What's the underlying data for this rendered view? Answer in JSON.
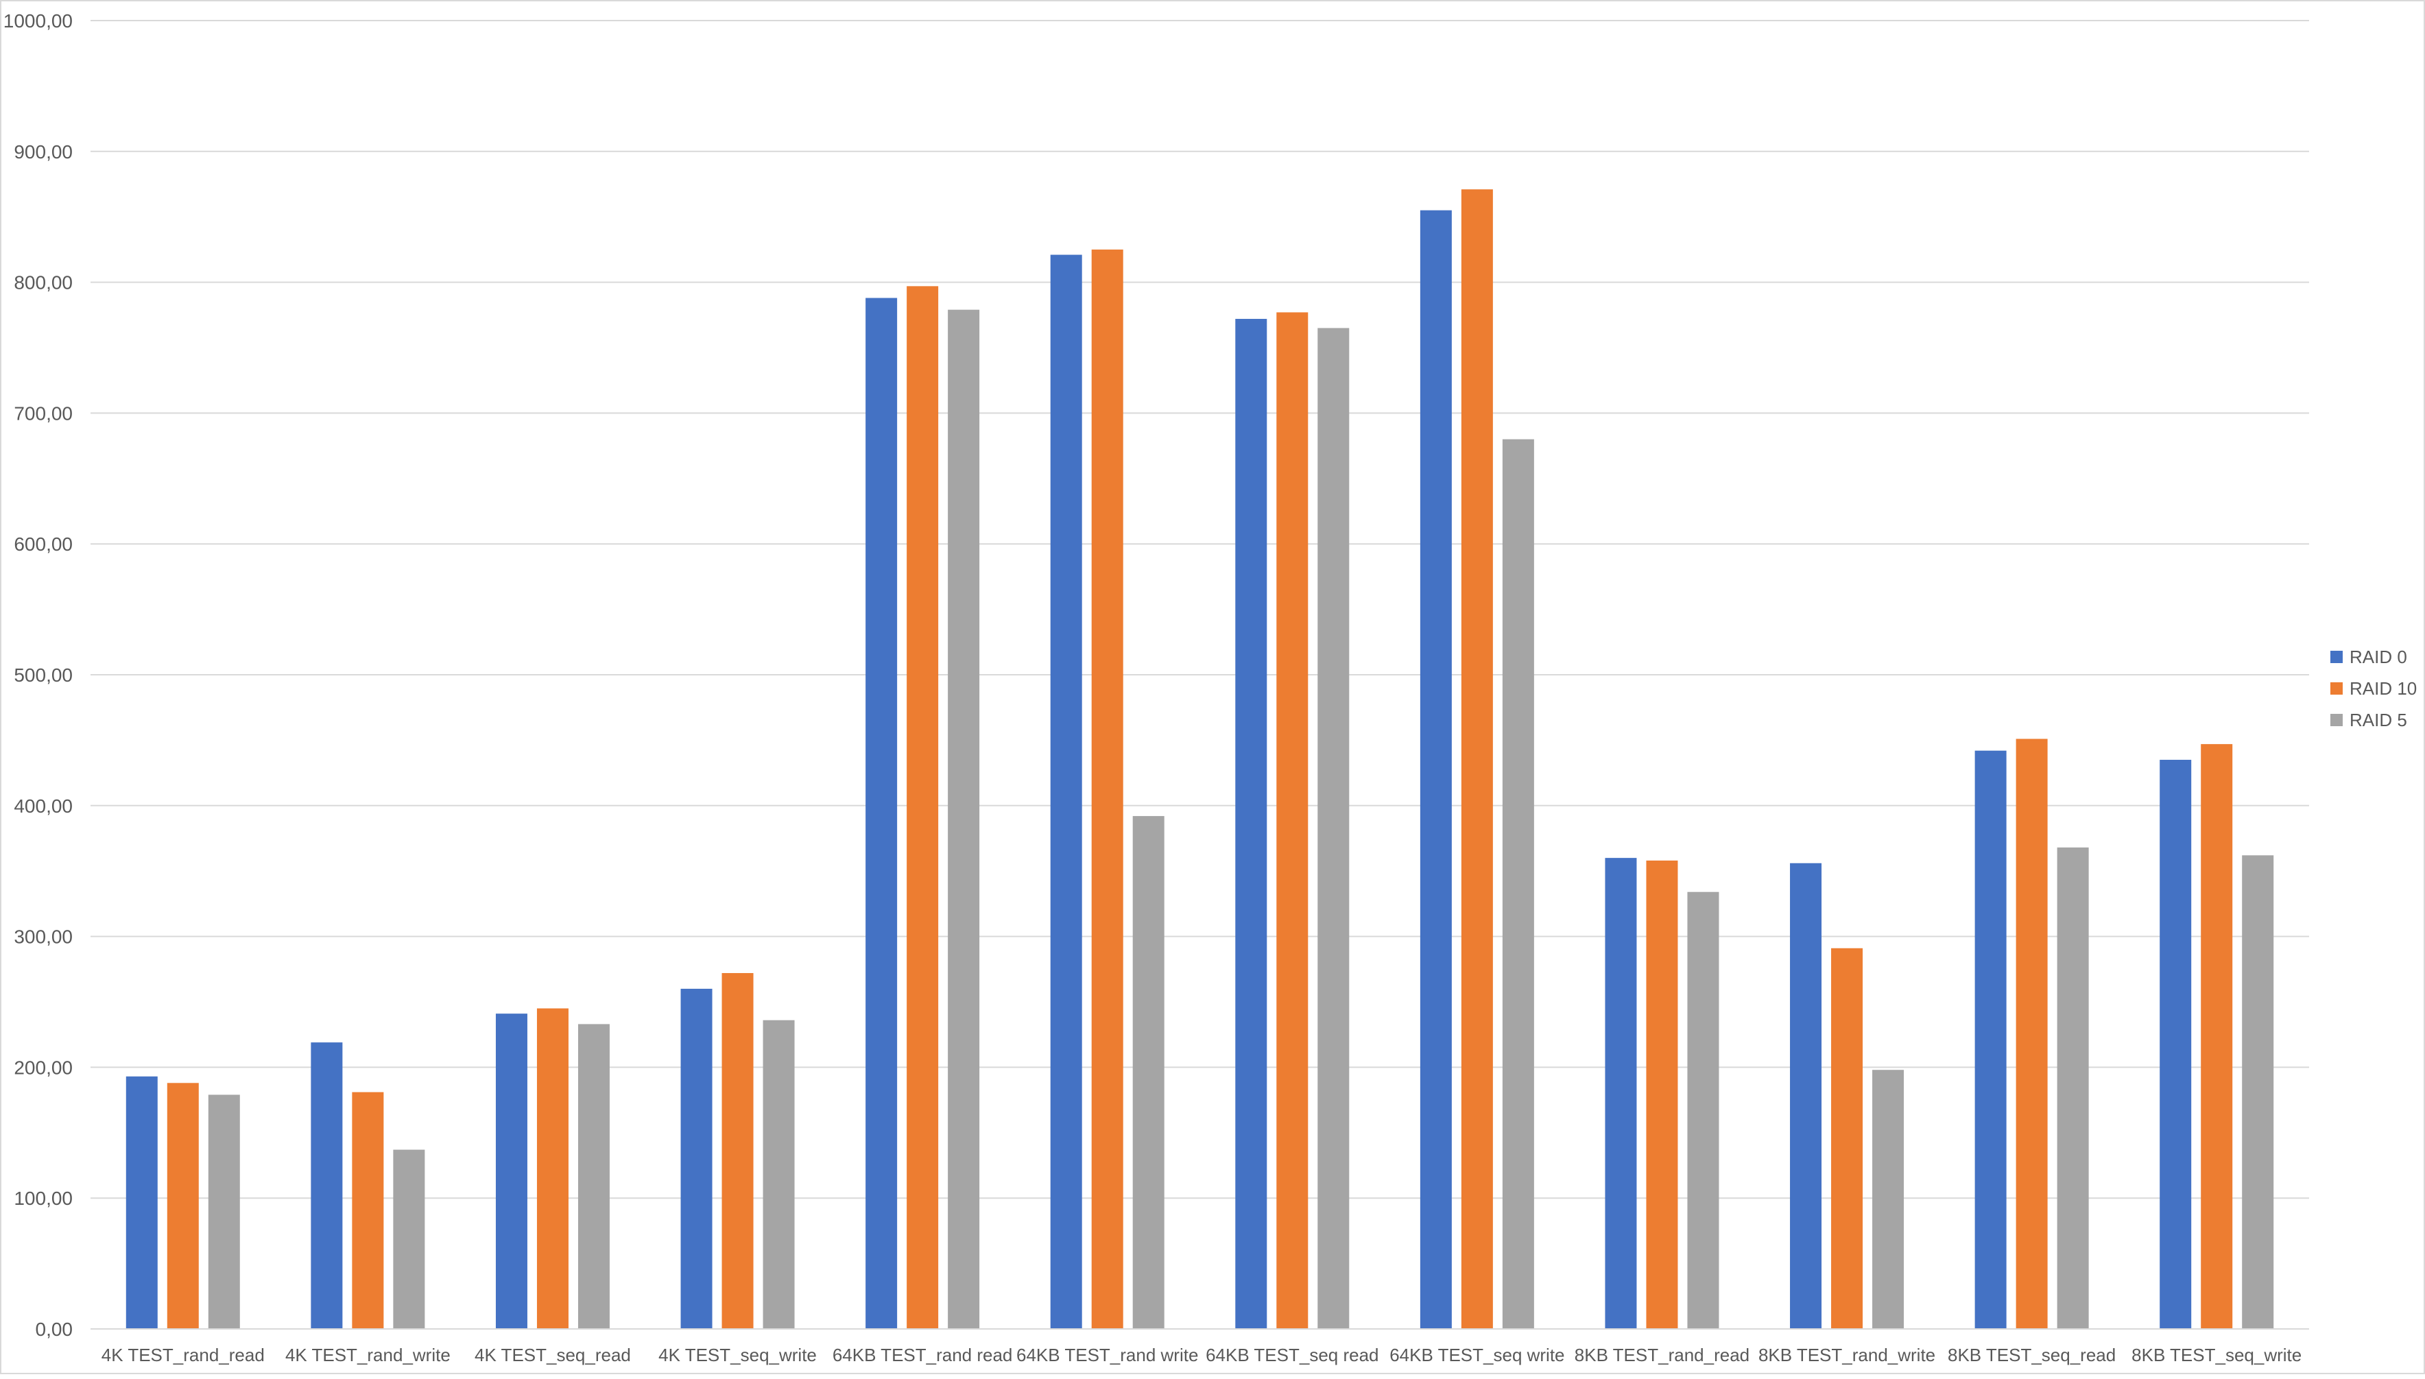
{
  "chart_data": {
    "type": "bar",
    "title": "",
    "xlabel": "",
    "ylabel": "",
    "ylim": [
      0,
      1000
    ],
    "yticks": [
      "0,00",
      "100,00",
      "200,00",
      "300,00",
      "400,00",
      "500,00",
      "600,00",
      "700,00",
      "800,00",
      "900,00",
      "1000,00"
    ],
    "grid": true,
    "legend_position": "right",
    "categories": [
      "4K TEST_rand_read",
      "4K TEST_rand_write",
      "4K TEST_seq_read",
      "4K TEST_seq_write",
      "64KB TEST_rand read",
      "64KB TEST_rand write",
      "64KB TEST_seq read",
      "64KB TEST_seq write",
      "8KB TEST_rand_read",
      "8KB TEST_rand_write",
      "8KB TEST_seq_read",
      "8KB TEST_seq_write"
    ],
    "series": [
      {
        "name": "RAID 0",
        "color": "#4472C4",
        "values": [
          193,
          219,
          241,
          260,
          788,
          821,
          772,
          855,
          360,
          356,
          442,
          435
        ]
      },
      {
        "name": "RAID 10",
        "color": "#ED7D31",
        "values": [
          188,
          181,
          245,
          272,
          797,
          825,
          777,
          871,
          358,
          291,
          451,
          447
        ]
      },
      {
        "name": "RAID 5",
        "color": "#A5A5A5",
        "values": [
          179,
          137,
          233,
          236,
          779,
          392,
          765,
          680,
          334,
          198,
          368,
          362
        ]
      }
    ]
  }
}
